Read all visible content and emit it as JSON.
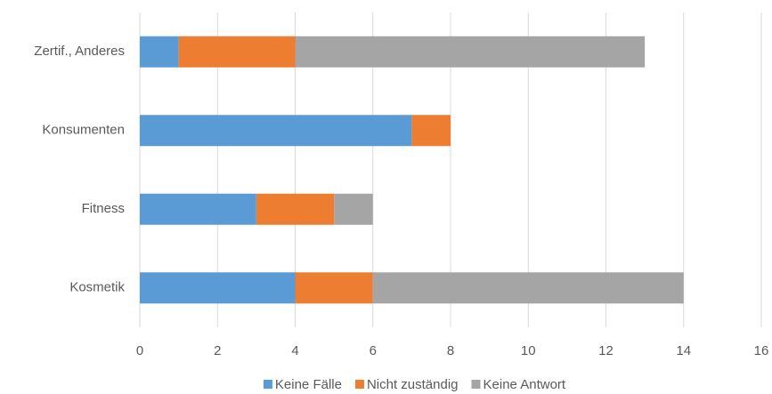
{
  "chart_data": {
    "type": "stacked_barh",
    "categories": [
      "Zertif., Anderes",
      "Konsumenten",
      "Fitness",
      "Kosmetik"
    ],
    "series": [
      {
        "name": "Keine Fälle",
        "color": "#5b9bd5",
        "values": [
          1,
          7,
          3,
          4
        ]
      },
      {
        "name": "Nicht zuständig",
        "color": "#ed7d31",
        "values": [
          3,
          1,
          2,
          2
        ]
      },
      {
        "name": "Keine Antwort",
        "color": "#a5a5a5",
        "values": [
          9,
          0,
          1,
          8
        ]
      }
    ],
    "xlim": [
      0,
      16
    ],
    "xticks": [
      0,
      2,
      4,
      6,
      8,
      10,
      12,
      14,
      16
    ],
    "grid": true,
    "legend": "bottom"
  }
}
